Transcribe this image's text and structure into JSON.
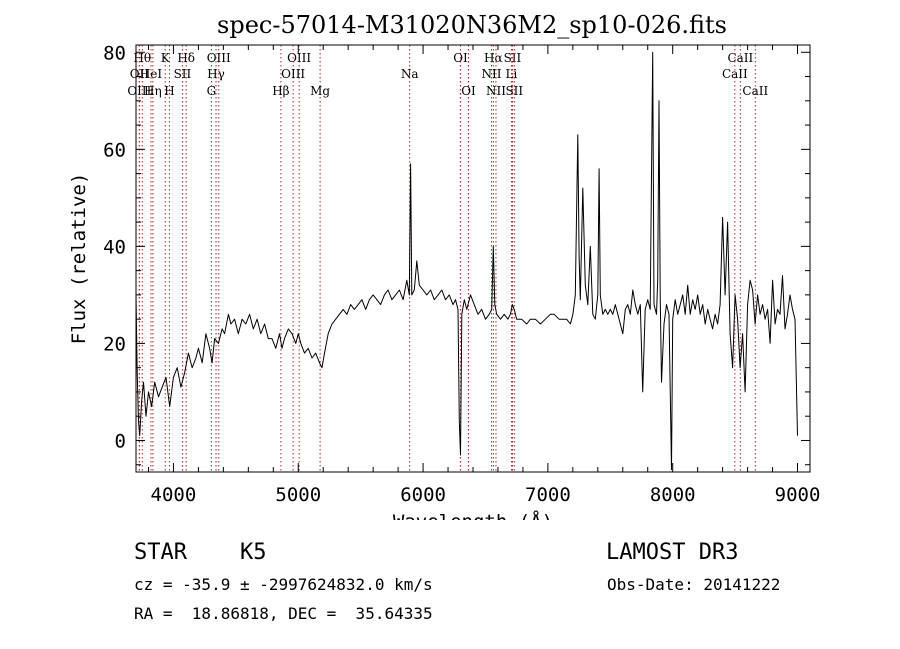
{
  "chart_data": {
    "type": "line",
    "title": "spec-57014-M31020N36M2_sp10-026.fits",
    "xlabel": "Wavelength (Å)",
    "ylabel": "Flux (relative)",
    "xlim": [
      3700,
      9100
    ],
    "ylim": [
      -6.5,
      81.5
    ],
    "xticks": [
      4000,
      5000,
      6000,
      7000,
      8000,
      9000
    ],
    "xtick_labels": [
      "4000",
      "5000",
      "6000",
      "7000",
      "8000",
      "9000"
    ],
    "yticks": [
      0,
      20,
      40,
      60,
      80
    ],
    "ytick_labels": [
      "0",
      "20",
      "40",
      "60",
      "80"
    ],
    "grid": false,
    "line_color": "#000000",
    "marker_color": "#b22222",
    "series": [
      {
        "name": "spectrum",
        "points": [
          [
            3700,
            30
          ],
          [
            3710,
            14
          ],
          [
            3720,
            4
          ],
          [
            3730,
            1
          ],
          [
            3745,
            8
          ],
          [
            3760,
            12
          ],
          [
            3780,
            5
          ],
          [
            3800,
            10
          ],
          [
            3825,
            7
          ],
          [
            3850,
            12
          ],
          [
            3880,
            9
          ],
          [
            3910,
            11
          ],
          [
            3940,
            13
          ],
          [
            3970,
            7
          ],
          [
            4000,
            13
          ],
          [
            4030,
            15
          ],
          [
            4060,
            11
          ],
          [
            4090,
            14
          ],
          [
            4120,
            18
          ],
          [
            4150,
            15
          ],
          [
            4180,
            17
          ],
          [
            4200,
            19
          ],
          [
            4230,
            16
          ],
          [
            4260,
            22
          ],
          [
            4290,
            19
          ],
          [
            4310,
            16
          ],
          [
            4330,
            21
          ],
          [
            4360,
            20
          ],
          [
            4390,
            23
          ],
          [
            4410,
            22
          ],
          [
            4440,
            26
          ],
          [
            4460,
            24
          ],
          [
            4490,
            25
          ],
          [
            4520,
            22
          ],
          [
            4550,
            25
          ],
          [
            4580,
            24
          ],
          [
            4610,
            26
          ],
          [
            4640,
            23
          ],
          [
            4670,
            25
          ],
          [
            4700,
            22
          ],
          [
            4730,
            24
          ],
          [
            4760,
            21
          ],
          [
            4790,
            21
          ],
          [
            4820,
            19
          ],
          [
            4850,
            22
          ],
          [
            4870,
            19
          ],
          [
            4890,
            21
          ],
          [
            4920,
            23
          ],
          [
            4950,
            22
          ],
          [
            4980,
            20
          ],
          [
            5000,
            22
          ],
          [
            5020,
            20
          ],
          [
            5050,
            18
          ],
          [
            5080,
            19
          ],
          [
            5110,
            17
          ],
          [
            5140,
            18
          ],
          [
            5170,
            16
          ],
          [
            5190,
            15
          ],
          [
            5210,
            18
          ],
          [
            5240,
            22
          ],
          [
            5270,
            24
          ],
          [
            5300,
            25
          ],
          [
            5330,
            26
          ],
          [
            5360,
            27
          ],
          [
            5390,
            26
          ],
          [
            5420,
            28
          ],
          [
            5450,
            27
          ],
          [
            5480,
            28
          ],
          [
            5510,
            29
          ],
          [
            5540,
            27
          ],
          [
            5570,
            29
          ],
          [
            5600,
            30
          ],
          [
            5630,
            29
          ],
          [
            5660,
            28
          ],
          [
            5690,
            30
          ],
          [
            5720,
            31
          ],
          [
            5750,
            29
          ],
          [
            5780,
            30
          ],
          [
            5810,
            31
          ],
          [
            5840,
            29
          ],
          [
            5870,
            33
          ],
          [
            5890,
            30
          ],
          [
            5900,
            57
          ],
          [
            5910,
            30
          ],
          [
            5930,
            31
          ],
          [
            5950,
            37
          ],
          [
            5970,
            32
          ],
          [
            6000,
            31
          ],
          [
            6030,
            30
          ],
          [
            6060,
            31
          ],
          [
            6090,
            29
          ],
          [
            6120,
            30
          ],
          [
            6150,
            31
          ],
          [
            6180,
            29
          ],
          [
            6210,
            30
          ],
          [
            6240,
            28
          ],
          [
            6260,
            29
          ],
          [
            6280,
            27
          ],
          [
            6290,
            4
          ],
          [
            6300,
            -3
          ],
          [
            6310,
            26
          ],
          [
            6330,
            29
          ],
          [
            6350,
            27
          ],
          [
            6380,
            30
          ],
          [
            6410,
            28
          ],
          [
            6440,
            26
          ],
          [
            6470,
            27
          ],
          [
            6500,
            25
          ],
          [
            6530,
            26
          ],
          [
            6550,
            27
          ],
          [
            6563,
            40
          ],
          [
            6575,
            28
          ],
          [
            6590,
            26
          ],
          [
            6620,
            25
          ],
          [
            6650,
            26
          ],
          [
            6680,
            25
          ],
          [
            6700,
            26
          ],
          [
            6716,
            28
          ],
          [
            6730,
            27
          ],
          [
            6750,
            25
          ],
          [
            6790,
            25
          ],
          [
            6830,
            24
          ],
          [
            6860,
            25
          ],
          [
            6900,
            25
          ],
          [
            6940,
            24
          ],
          [
            6980,
            25
          ],
          [
            7020,
            26
          ],
          [
            7050,
            26
          ],
          [
            7090,
            25
          ],
          [
            7120,
            25
          ],
          [
            7150,
            25
          ],
          [
            7180,
            24
          ],
          [
            7200,
            26
          ],
          [
            7220,
            30
          ],
          [
            7240,
            63
          ],
          [
            7250,
            38
          ],
          [
            7260,
            29
          ],
          [
            7280,
            52
          ],
          [
            7300,
            32
          ],
          [
            7320,
            28
          ],
          [
            7340,
            40
          ],
          [
            7360,
            26
          ],
          [
            7380,
            25
          ],
          [
            7400,
            30
          ],
          [
            7410,
            56
          ],
          [
            7420,
            30
          ],
          [
            7440,
            26
          ],
          [
            7460,
            27
          ],
          [
            7480,
            26
          ],
          [
            7500,
            27
          ],
          [
            7520,
            26
          ],
          [
            7540,
            28
          ],
          [
            7560,
            26
          ],
          [
            7580,
            24
          ],
          [
            7600,
            22
          ],
          [
            7620,
            27
          ],
          [
            7640,
            28
          ],
          [
            7660,
            26
          ],
          [
            7680,
            31
          ],
          [
            7700,
            28
          ],
          [
            7720,
            26
          ],
          [
            7740,
            28
          ],
          [
            7760,
            10
          ],
          [
            7780,
            27
          ],
          [
            7800,
            29
          ],
          [
            7820,
            27
          ],
          [
            7840,
            80
          ],
          [
            7850,
            28
          ],
          [
            7870,
            26
          ],
          [
            7880,
            33
          ],
          [
            7890,
            70
          ],
          [
            7900,
            30
          ],
          [
            7910,
            12
          ],
          [
            7930,
            24
          ],
          [
            7950,
            28
          ],
          [
            7970,
            26
          ],
          [
            7990,
            -6
          ],
          [
            8000,
            25
          ],
          [
            8020,
            29
          ],
          [
            8040,
            26
          ],
          [
            8060,
            28
          ],
          [
            8080,
            30
          ],
          [
            8100,
            26
          ],
          [
            8120,
            32
          ],
          [
            8140,
            26
          ],
          [
            8160,
            29
          ],
          [
            8180,
            27
          ],
          [
            8200,
            30
          ],
          [
            8220,
            26
          ],
          [
            8240,
            28
          ],
          [
            8260,
            24
          ],
          [
            8280,
            27
          ],
          [
            8300,
            25
          ],
          [
            8320,
            23
          ],
          [
            8340,
            26
          ],
          [
            8360,
            24
          ],
          [
            8380,
            28
          ],
          [
            8400,
            46
          ],
          [
            8420,
            30
          ],
          [
            8440,
            45
          ],
          [
            8460,
            22
          ],
          [
            8480,
            15
          ],
          [
            8500,
            30
          ],
          [
            8520,
            25
          ],
          [
            8540,
            15
          ],
          [
            8560,
            22
          ],
          [
            8580,
            10
          ],
          [
            8600,
            28
          ],
          [
            8620,
            33
          ],
          [
            8640,
            31
          ],
          [
            8660,
            24
          ],
          [
            8680,
            30
          ],
          [
            8700,
            26
          ],
          [
            8720,
            28
          ],
          [
            8740,
            25
          ],
          [
            8760,
            27
          ],
          [
            8780,
            20
          ],
          [
            8800,
            33
          ],
          [
            8820,
            24
          ],
          [
            8840,
            27
          ],
          [
            8860,
            26
          ],
          [
            8880,
            34
          ],
          [
            8900,
            23
          ],
          [
            8920,
            26
          ],
          [
            8940,
            30
          ],
          [
            8960,
            27
          ],
          [
            8980,
            25
          ],
          [
            9000,
            1
          ]
        ]
      }
    ],
    "markers": [
      {
        "label": "Hθ",
        "x": 3750,
        "row": 1
      },
      {
        "label": "K",
        "x": 3934,
        "row": 1
      },
      {
        "label": "Hδ",
        "x": 4102,
        "row": 1
      },
      {
        "label": "OII",
        "x": 3727,
        "row": 2
      },
      {
        "label": "HeI",
        "x": 3820,
        "row": 2
      },
      {
        "label": "SII",
        "x": 4072,
        "row": 2
      },
      {
        "label": "OIII",
        "x": 3727,
        "row": 3
      },
      {
        "label": "Hη",
        "x": 3835,
        "row": 3
      },
      {
        "label": "H",
        "x": 3968,
        "row": 3
      },
      {
        "label": "OIII",
        "x": 4363,
        "row": 1
      },
      {
        "label": "Hγ",
        "x": 4341,
        "row": 2
      },
      {
        "label": "G",
        "x": 4304,
        "row": 3
      },
      {
        "label": "OIII",
        "x": 5007,
        "row": 1
      },
      {
        "label": "OIII",
        "x": 4959,
        "row": 2
      },
      {
        "label": "Hβ",
        "x": 4861,
        "row": 3
      },
      {
        "label": "Mg",
        "x": 5175,
        "row": 3
      },
      {
        "label": "Na",
        "x": 5893,
        "row": 2
      },
      {
        "label": "OI",
        "x": 6300,
        "row": 1
      },
      {
        "label": "OI",
        "x": 6364,
        "row": 3
      },
      {
        "label": "Hα",
        "x": 6563,
        "row": 1
      },
      {
        "label": "SII",
        "x": 6716,
        "row": 1
      },
      {
        "label": "NII",
        "x": 6548,
        "row": 2
      },
      {
        "label": "Li",
        "x": 6708,
        "row": 2
      },
      {
        "label": "NII",
        "x": 6584,
        "row": 3
      },
      {
        "label": "SII",
        "x": 6731,
        "row": 3
      },
      {
        "label": "CaII",
        "x": 8542,
        "row": 1
      },
      {
        "label": "CaII",
        "x": 8498,
        "row": 2
      },
      {
        "label": "CaII",
        "x": 8662,
        "row": 3
      }
    ]
  },
  "footer": {
    "classification": "STAR    K5",
    "survey": "LAMOST DR3",
    "redshift": "cz = -35.9 ± -2997624832.0 km/s",
    "obs_date": "Obs-Date: 20141222",
    "coords": "RA =  18.86818, DEC =  35.64335"
  }
}
